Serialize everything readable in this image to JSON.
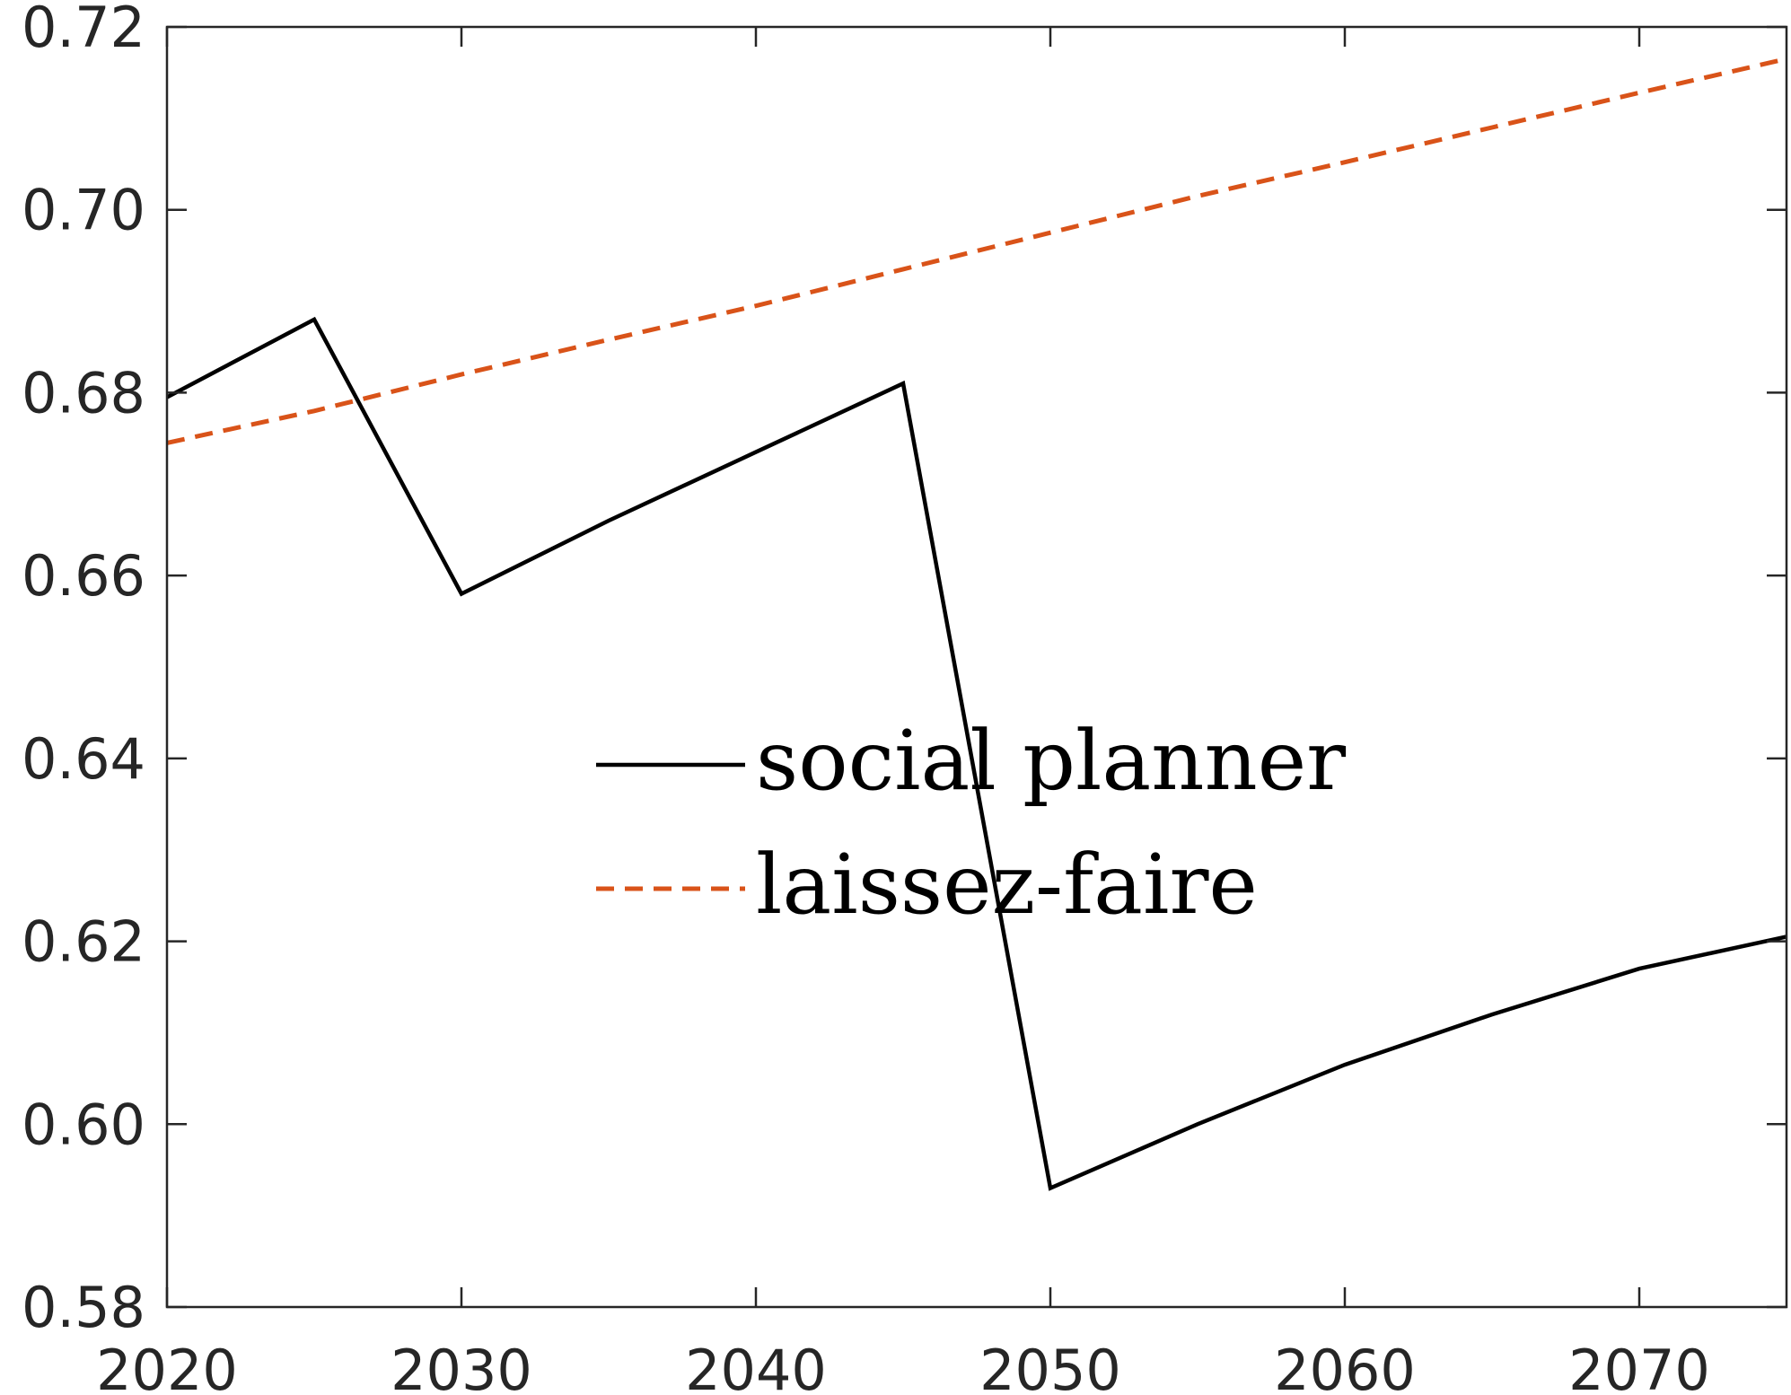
{
  "chart_data": {
    "type": "line",
    "title": "",
    "xlabel": "",
    "ylabel": "",
    "xlim": [
      2020,
      2075
    ],
    "ylim": [
      0.58,
      0.72
    ],
    "xticks": [
      2020,
      2030,
      2040,
      2050,
      2060,
      2070
    ],
    "xtick_labels": [
      "2020",
      "2030",
      "2040",
      "2050",
      "2060",
      "2070"
    ],
    "yticks": [
      0.58,
      0.6,
      0.62,
      0.64,
      0.66,
      0.68,
      0.7,
      0.72
    ],
    "ytick_labels": [
      "0.58",
      "0.60",
      "0.62",
      "0.64",
      "0.66",
      "0.68",
      "0.70",
      "0.72"
    ],
    "grid": false,
    "legend_position": "center",
    "series": [
      {
        "name": "social planner",
        "color": "#000000",
        "style": "solid",
        "x": [
          2020,
          2025,
          2030,
          2035,
          2040,
          2045,
          2050,
          2055,
          2060,
          2065,
          2070,
          2075
        ],
        "y": [
          0.6795,
          0.688,
          0.658,
          0.666,
          0.6735,
          0.681,
          0.593,
          0.6,
          0.6065,
          0.612,
          0.617,
          0.6205
        ]
      },
      {
        "name": "laissez-faire",
        "color": "#D95319",
        "style": "dashed",
        "x": [
          2020,
          2025,
          2030,
          2035,
          2040,
          2045,
          2050,
          2055,
          2060,
          2065,
          2070,
          2075
        ],
        "y": [
          0.6745,
          0.678,
          0.682,
          0.6858,
          0.6895,
          0.6935,
          0.6975,
          0.7015,
          0.7052,
          0.709,
          0.7128,
          0.7165
        ]
      }
    ]
  }
}
